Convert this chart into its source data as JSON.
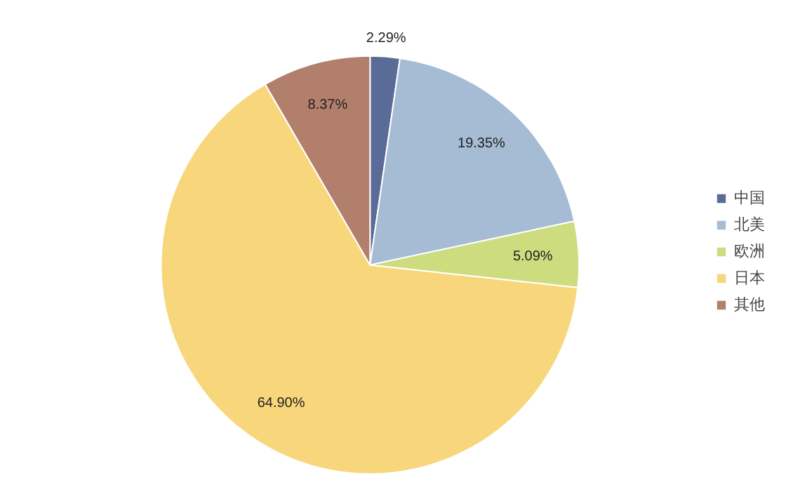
{
  "chart_data": {
    "type": "pie",
    "categories": [
      "中国",
      "北美",
      "欧洲",
      "日本",
      "其他"
    ],
    "values": [
      2.29,
      19.35,
      5.09,
      64.9,
      8.37
    ],
    "colors": [
      "#5b6b97",
      "#a6bcd5",
      "#cddc7f",
      "#f8d67b",
      "#b27f6c"
    ],
    "value_labels": [
      "2.29%",
      "19.35%",
      "5.09%",
      "64.90%",
      "8.37%"
    ],
    "legend": "right"
  }
}
